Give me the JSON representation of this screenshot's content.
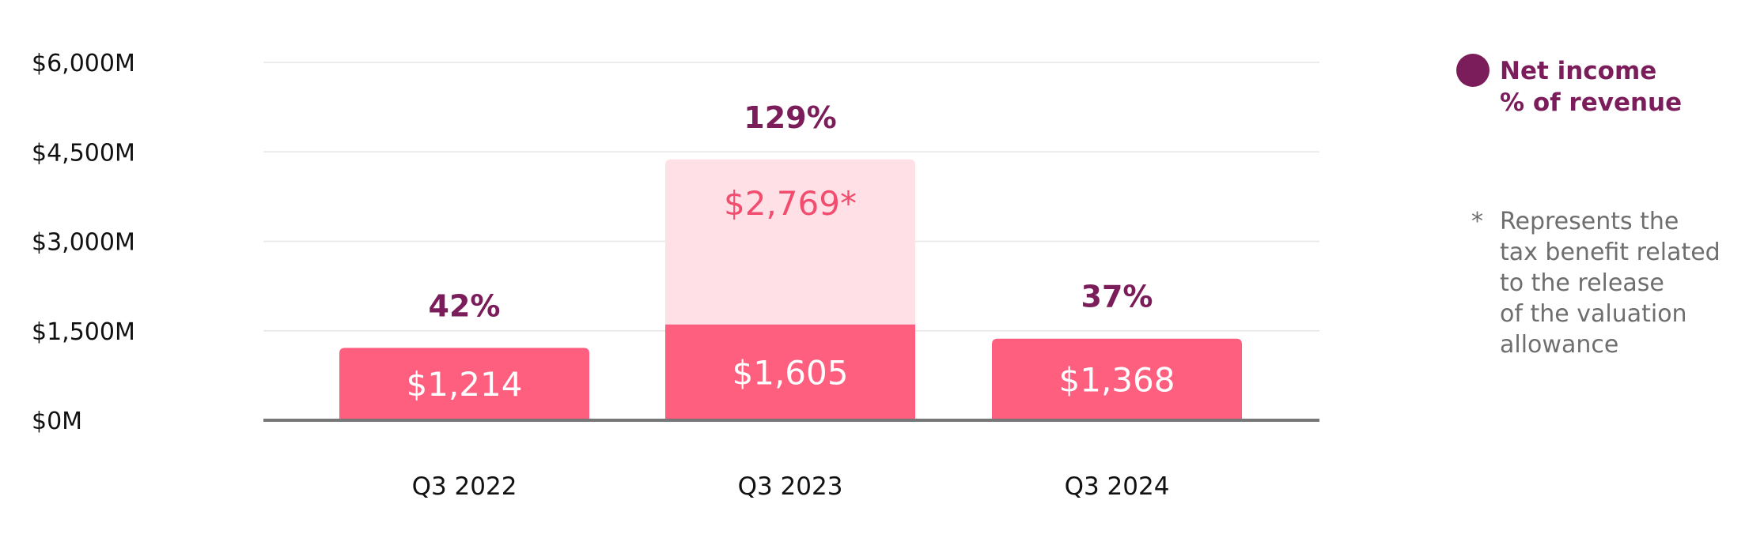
{
  "chart_data": {
    "type": "bar",
    "stacked": true,
    "categories": [
      "Q3 2022",
      "Q3 2023",
      "Q3 2024"
    ],
    "series": [
      {
        "name": "Net income",
        "values": [
          1214,
          1605,
          1368
        ],
        "labels": [
          "$1,214",
          "$1,605",
          "$1,368"
        ]
      },
      {
        "values": [
          0,
          2769,
          0
        ],
        "labels": [
          "",
          "$2,769*",
          ""
        ]
      }
    ],
    "percent_of_revenue": [
      "42%",
      "129%",
      "37%"
    ],
    "yticks": [
      {
        "value": 0,
        "label": "$0M"
      },
      {
        "value": 1500,
        "label": "$1,500M"
      },
      {
        "value": 3000,
        "label": "$3,000M"
      },
      {
        "value": 4500,
        "label": "$4,500M"
      },
      {
        "value": 6000,
        "label": "$6,000M"
      }
    ],
    "ylim": [
      0,
      6000
    ],
    "grid": true,
    "legend": {
      "placement": "right",
      "lines": [
        "Net income",
        "% of revenue"
      ]
    },
    "note": {
      "marker": "*",
      "lines": [
        "Represents the",
        "tax benefit related",
        "to the release",
        "of the valuation",
        "allowance"
      ]
    },
    "colors": {
      "net_income": "#ff5f7e",
      "tax_benefit": "#ffe0e6",
      "tax_label": "#f24d6e",
      "percent": "#7b1d5a",
      "grid": "#e6e6e6",
      "axis": "#777777"
    }
  }
}
